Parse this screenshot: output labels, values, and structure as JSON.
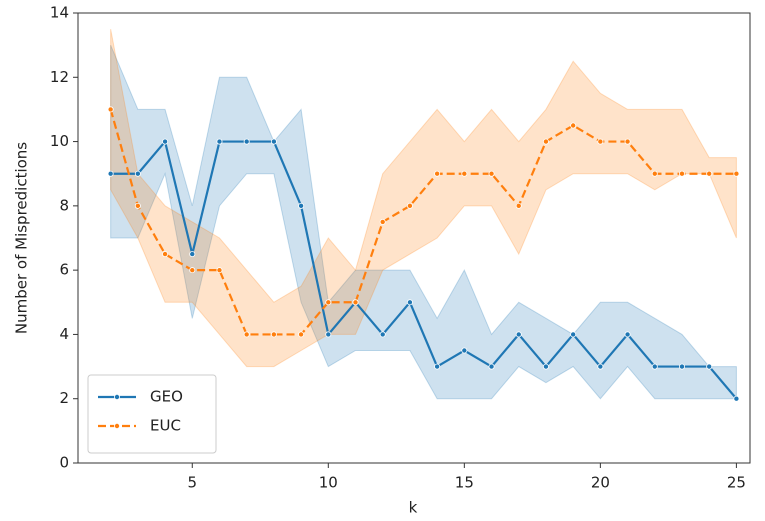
{
  "chart_data": {
    "type": "line",
    "x_label": "k",
    "y_label": "Number of Mispredictions",
    "x": [
      2,
      3,
      4,
      5,
      6,
      7,
      8,
      9,
      10,
      11,
      12,
      13,
      14,
      15,
      16,
      17,
      18,
      19,
      20,
      21,
      22,
      23,
      24,
      25
    ],
    "series": [
      {
        "name": "GEO",
        "color": "#1f77b4",
        "linestyle": "solid",
        "marker": true,
        "values": [
          9,
          9,
          10,
          6.5,
          10,
          10,
          10,
          8,
          4,
          5,
          4,
          5,
          3,
          3.5,
          3,
          4,
          3,
          4,
          3,
          4,
          3,
          3,
          3,
          2
        ],
        "lower": [
          7,
          7,
          9,
          4.5,
          8,
          9,
          9,
          5,
          3,
          3.5,
          3.5,
          3.5,
          2,
          2,
          2,
          3,
          2.5,
          3,
          2,
          3,
          2,
          2,
          2,
          2
        ],
        "upper": [
          13,
          11,
          11,
          8,
          12,
          12,
          10,
          11,
          5,
          6,
          6,
          6,
          4.5,
          6,
          4,
          5,
          4.5,
          4,
          5,
          5,
          4.5,
          4,
          3,
          3
        ]
      },
      {
        "name": "EUC",
        "color": "#ff7f0e",
        "linestyle": "dashed",
        "marker": true,
        "values": [
          11,
          8,
          6.5,
          6,
          6,
          4,
          4,
          4,
          5,
          5,
          7.5,
          8,
          9,
          9,
          9,
          8,
          10,
          10.5,
          10,
          10,
          9,
          9,
          9,
          9
        ],
        "lower": [
          8.5,
          7,
          5,
          5,
          4,
          3,
          3,
          3.5,
          4,
          4,
          6,
          6.5,
          7,
          8,
          8,
          6.5,
          8.5,
          9,
          9,
          9,
          8.5,
          9,
          9,
          7
        ],
        "upper": [
          13.5,
          9,
          8,
          7.5,
          7,
          6,
          5,
          5.5,
          7,
          6,
          9,
          10,
          11,
          10,
          11,
          10,
          11,
          12.5,
          11.5,
          11,
          11,
          11,
          9.5,
          9.5
        ]
      }
    ],
    "xlim": [
      0.8,
      25.5
    ],
    "ylim": [
      0,
      14
    ],
    "xticks": [
      5,
      10,
      15,
      20,
      25
    ],
    "yticks": [
      0,
      2,
      4,
      6,
      8,
      10,
      12,
      14
    ],
    "grid": false,
    "legend": "lower left"
  }
}
